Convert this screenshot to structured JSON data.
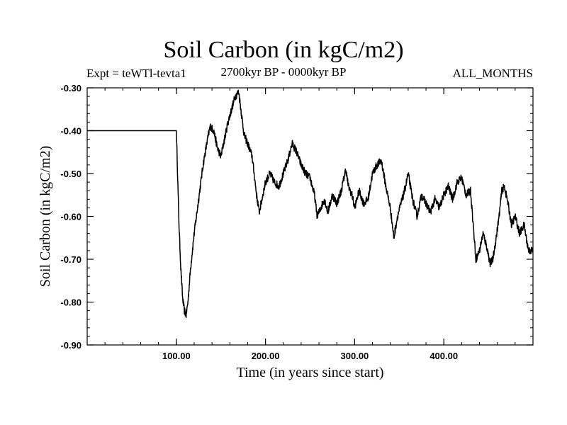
{
  "chart_data": {
    "type": "line",
    "title": "Soil Carbon (in kgC/m2)",
    "subtitle": "2700kyr BP - 0000kyr BP",
    "experiment": "Expt = teWTl-tevta1",
    "period": "ALL_MONTHS",
    "xlabel": "Time (in years since start)",
    "ylabel": "Soil Carbon (in kgC/m2)",
    "xlim": [
      0,
      500
    ],
    "ylim": [
      -0.9,
      -0.3
    ],
    "xticks": [
      100,
      200,
      300,
      400
    ],
    "xtick_labels": [
      "100.00",
      "200.00",
      "300.00",
      "400.00"
    ],
    "yticks": [
      -0.3,
      -0.4,
      -0.5,
      -0.6,
      -0.7,
      -0.8,
      -0.9
    ],
    "ytick_labels": [
      "-0.30",
      "-0.40",
      "-0.50",
      "-0.60",
      "-0.70",
      "-0.80",
      "-0.90"
    ],
    "series": [
      {
        "name": "Soil Carbon",
        "color": "#000000",
        "x": [
          0,
          100,
          101,
          103,
          105,
          107,
          109,
          111,
          113,
          116,
          120,
          125,
          130,
          135,
          138,
          142,
          146,
          150,
          155,
          158,
          162,
          166,
          170,
          173,
          176,
          180,
          185,
          190,
          193,
          196,
          200,
          205,
          210,
          215,
          220,
          225,
          230,
          235,
          240,
          245,
          250,
          255,
          258,
          262,
          266,
          270,
          275,
          280,
          285,
          290,
          293,
          297,
          300,
          305,
          310,
          315,
          320,
          325,
          330,
          335,
          340,
          344,
          348,
          352,
          356,
          360,
          365,
          370,
          375,
          380,
          385,
          390,
          395,
          400,
          405,
          410,
          415,
          420,
          425,
          430,
          433,
          436,
          440,
          444,
          448,
          452,
          455,
          458,
          462,
          465,
          468,
          472,
          476,
          480,
          485,
          490,
          495,
          500
        ],
        "y": [
          -0.4,
          -0.4,
          -0.47,
          -0.62,
          -0.72,
          -0.79,
          -0.82,
          -0.83,
          -0.8,
          -0.72,
          -0.64,
          -0.56,
          -0.48,
          -0.42,
          -0.39,
          -0.4,
          -0.44,
          -0.46,
          -0.41,
          -0.38,
          -0.35,
          -0.32,
          -0.31,
          -0.36,
          -0.41,
          -0.43,
          -0.46,
          -0.55,
          -0.59,
          -0.56,
          -0.52,
          -0.5,
          -0.52,
          -0.53,
          -0.5,
          -0.47,
          -0.43,
          -0.45,
          -0.48,
          -0.5,
          -0.51,
          -0.55,
          -0.6,
          -0.58,
          -0.56,
          -0.59,
          -0.55,
          -0.57,
          -0.54,
          -0.49,
          -0.53,
          -0.55,
          -0.58,
          -0.54,
          -0.57,
          -0.56,
          -0.5,
          -0.48,
          -0.47,
          -0.53,
          -0.58,
          -0.65,
          -0.6,
          -0.57,
          -0.54,
          -0.5,
          -0.56,
          -0.6,
          -0.55,
          -0.57,
          -0.59,
          -0.56,
          -0.58,
          -0.55,
          -0.53,
          -0.56,
          -0.52,
          -0.51,
          -0.55,
          -0.54,
          -0.62,
          -0.7,
          -0.68,
          -0.64,
          -0.67,
          -0.71,
          -0.7,
          -0.66,
          -0.6,
          -0.54,
          -0.53,
          -0.57,
          -0.62,
          -0.6,
          -0.64,
          -0.62,
          -0.68,
          -0.68
        ]
      }
    ]
  }
}
